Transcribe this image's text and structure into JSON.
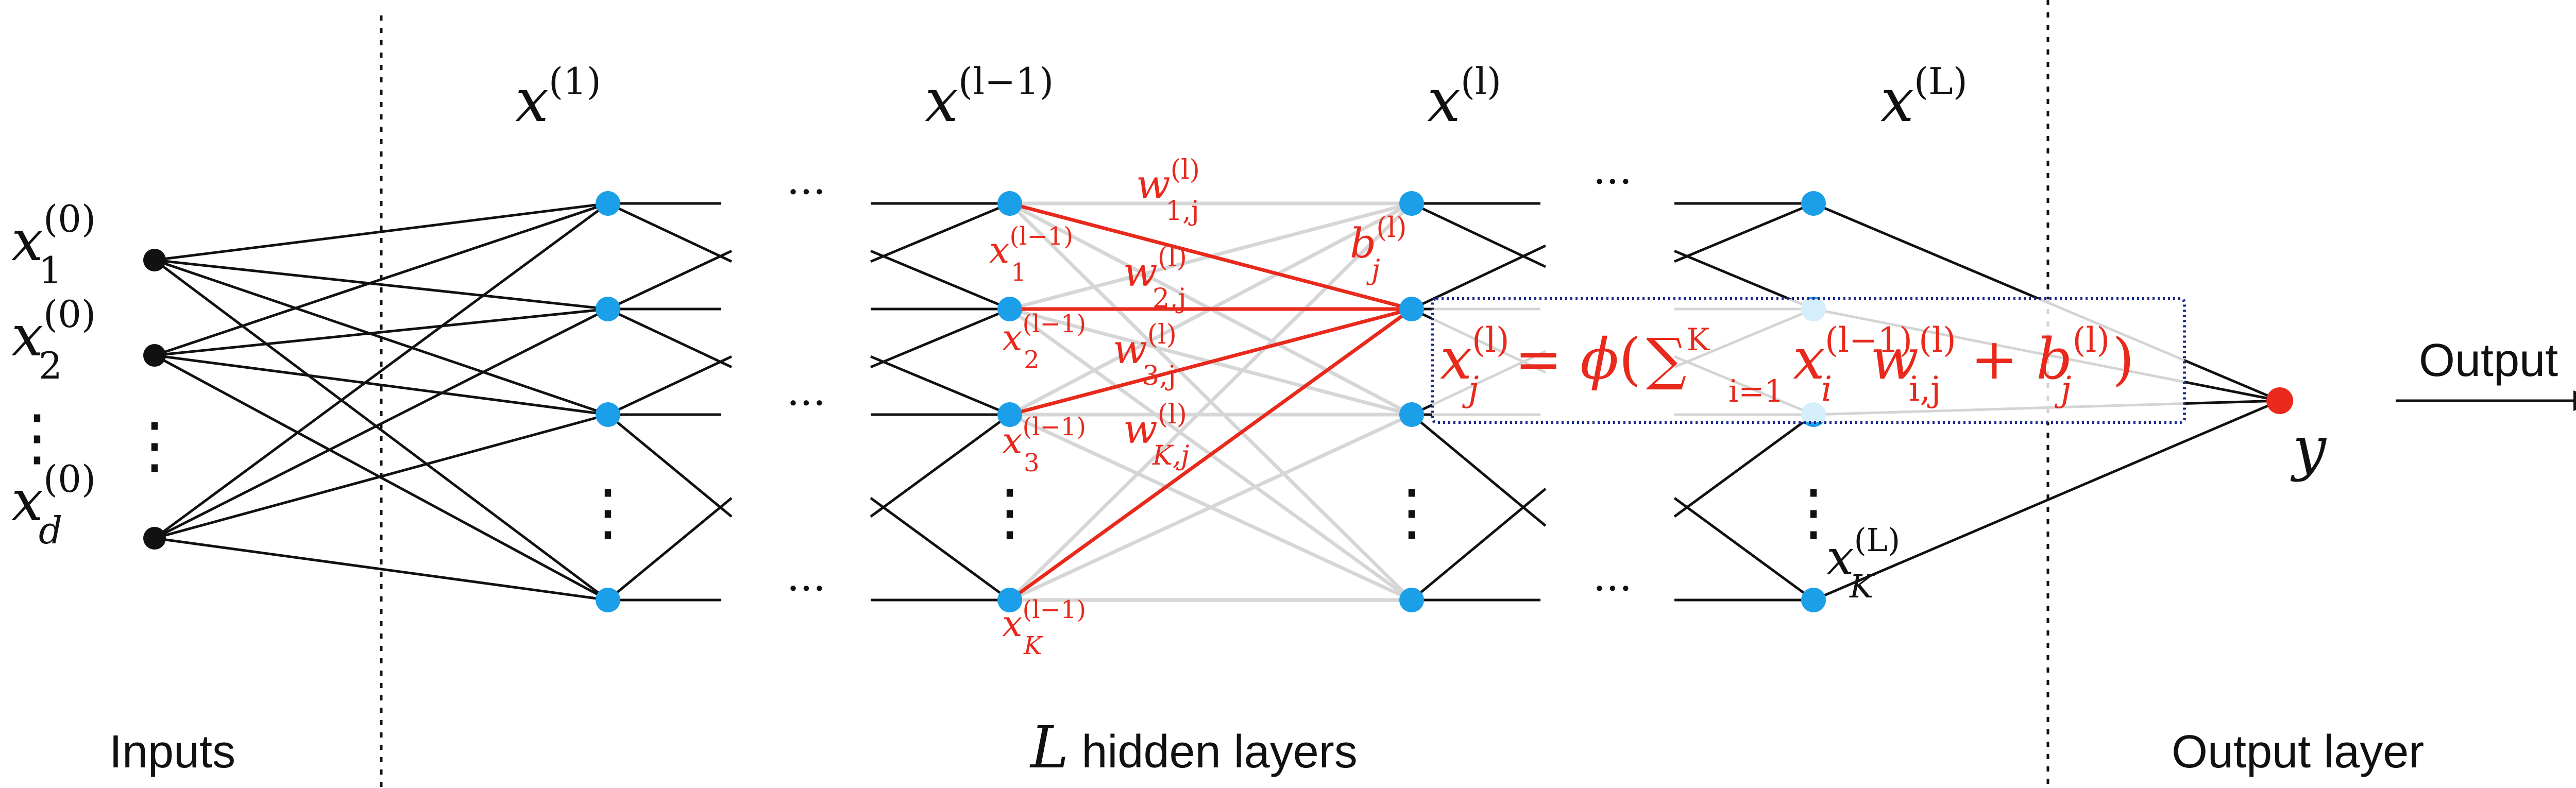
{
  "layer_headers": {
    "input_var": "x",
    "input_sup": "(1)",
    "prev_var": "x",
    "prev_sup": "(l−1)",
    "cur_var": "x",
    "cur_sup": "(l)",
    "last_var": "x",
    "last_sup": "(L)"
  },
  "inputs": {
    "x1": {
      "var": "x",
      "sup": "(0)",
      "sub": "1"
    },
    "x2": {
      "var": "x",
      "sup": "(0)",
      "sub": "2"
    },
    "xd": {
      "var": "x",
      "sup": "(0)",
      "sub": "d"
    },
    "vdots": "⋮"
  },
  "prev_layer_nodes": {
    "x1": {
      "var": "x",
      "sup": "(l−1)",
      "sub": "1"
    },
    "x2": {
      "var": "x",
      "sup": "(l−1)",
      "sub": "2"
    },
    "x3": {
      "var": "x",
      "sup": "(l−1)",
      "sub": "3"
    },
    "xK": {
      "var": "x",
      "sup": "(l−1)",
      "sub": "K"
    }
  },
  "weights": {
    "w1": {
      "var": "w",
      "sup": "(l)",
      "sub": "1,j"
    },
    "w2": {
      "var": "w",
      "sup": "(l)",
      "sub": "2,j"
    },
    "w3": {
      "var": "w",
      "sup": "(l)",
      "sub": "3,j"
    },
    "wK": {
      "var": "w",
      "sup": "(l)",
      "sub": "K,j"
    }
  },
  "bias": {
    "var": "b",
    "sup": "(l)",
    "sub": "j"
  },
  "formula": {
    "lhs_var": "x",
    "lhs_sup": "(l)",
    "lhs_sub": "j",
    "eq": " = ",
    "phi": "ϕ",
    "lparen": "(",
    "sum": "∑",
    "sum_sub": "i=1",
    "sum_sup": "K",
    "xi_var": "x",
    "xi_sup": "(l−1)",
    "xi_sub": "i",
    "w_var": "w",
    "w_sup": "(l)",
    "w_sub": "i,j",
    "plus": " + ",
    "b_var": "b",
    "b_sup": "(l)",
    "b_sub": "j",
    "rparen": ")"
  },
  "last_node": {
    "var": "x",
    "sup": "(L)",
    "sub": "K"
  },
  "output_node": {
    "var": "y"
  },
  "output_label": "Output",
  "ellipsis": "···",
  "vdots": "⋮",
  "bottom": {
    "inputs": "Inputs",
    "hidden_var": "L",
    "hidden_text": " hidden layers",
    "output_layer": "Output layer"
  },
  "colors": {
    "black": "#111111",
    "node_blue": "#1a9fe8",
    "highlight_red": "#e8291c",
    "output_node": "#e8291c",
    "faded_edge": "#d6d6d6",
    "formula_border": "#1a2a8c"
  }
}
